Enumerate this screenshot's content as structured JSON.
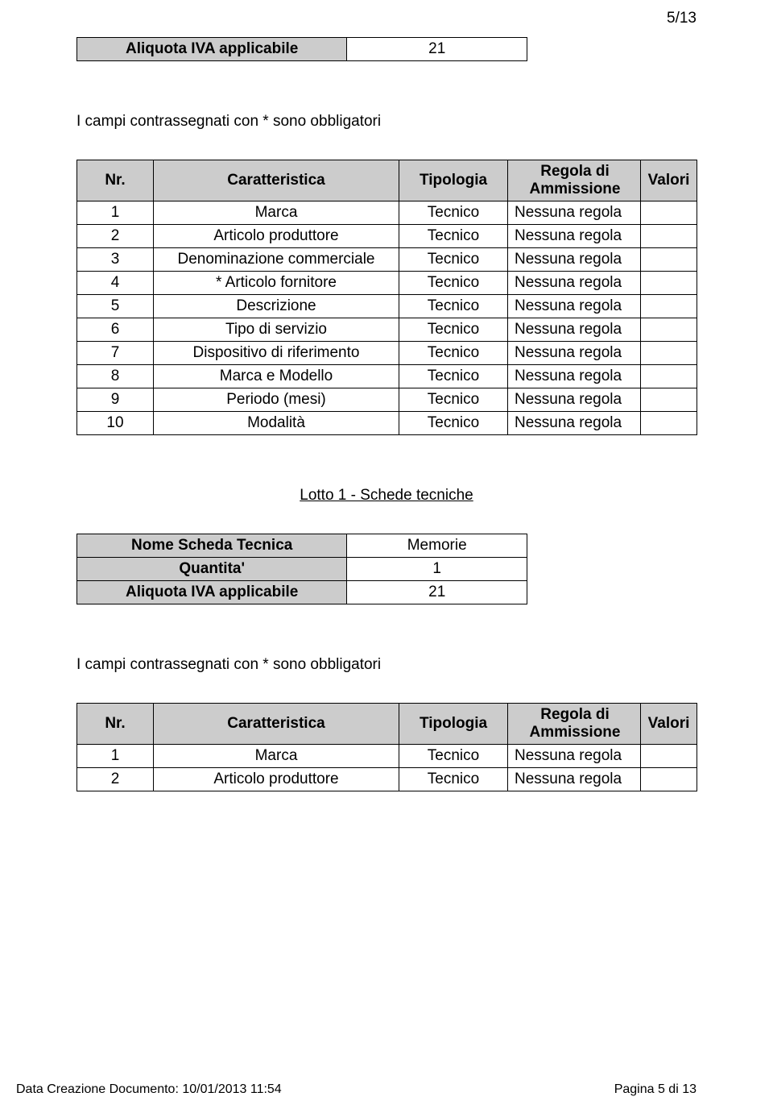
{
  "pageNumber": "5/13",
  "aliquotaTable": {
    "label": "Aliquota IVA applicabile",
    "value": "21"
  },
  "note": "I campi contrassegnati con * sono obbligatori",
  "mainTable": {
    "headers": [
      "Nr.",
      "Caratteristica",
      "Tipologia",
      "Regola di Ammissione",
      "Valori"
    ],
    "rows": [
      {
        "nr": "1",
        "car": "Marca",
        "tip": "Tecnico",
        "reg": "Nessuna regola",
        "val": ""
      },
      {
        "nr": "2",
        "car": "Articolo produttore",
        "tip": "Tecnico",
        "reg": "Nessuna regola",
        "val": ""
      },
      {
        "nr": "3",
        "car": "Denominazione commerciale",
        "tip": "Tecnico",
        "reg": "Nessuna regola",
        "val": ""
      },
      {
        "nr": "4",
        "car": "* Articolo fornitore",
        "tip": "Tecnico",
        "reg": "Nessuna regola",
        "val": ""
      },
      {
        "nr": "5",
        "car": "Descrizione",
        "tip": "Tecnico",
        "reg": "Nessuna regola",
        "val": ""
      },
      {
        "nr": "6",
        "car": "Tipo di servizio",
        "tip": "Tecnico",
        "reg": "Nessuna regola",
        "val": ""
      },
      {
        "nr": "7",
        "car": "Dispositivo di riferimento",
        "tip": "Tecnico",
        "reg": "Nessuna regola",
        "val": ""
      },
      {
        "nr": "8",
        "car": "Marca e Modello",
        "tip": "Tecnico",
        "reg": "Nessuna regola",
        "val": ""
      },
      {
        "nr": "9",
        "car": "Periodo (mesi)",
        "tip": "Tecnico",
        "reg": "Nessuna regola",
        "val": ""
      },
      {
        "nr": "10",
        "car": "Modalità",
        "tip": "Tecnico",
        "reg": "Nessuna regola",
        "val": ""
      }
    ]
  },
  "sectionTitle": "Lotto 1 - Schede tecniche",
  "schedaTable": {
    "rows": [
      {
        "label": "Nome Scheda Tecnica",
        "value": "Memorie"
      },
      {
        "label": "Quantita'",
        "value": "1"
      },
      {
        "label": "Aliquota IVA applicabile",
        "value": "21"
      }
    ]
  },
  "note2": "I campi contrassegnati con * sono obbligatori",
  "secondTable": {
    "headers": [
      "Nr.",
      "Caratteristica",
      "Tipologia",
      "Regola di Ammissione",
      "Valori"
    ],
    "rows": [
      {
        "nr": "1",
        "car": "Marca",
        "tip": "Tecnico",
        "reg": "Nessuna regola",
        "val": ""
      },
      {
        "nr": "2",
        "car": "Articolo produttore",
        "tip": "Tecnico",
        "reg": "Nessuna regola",
        "val": ""
      }
    ]
  },
  "footer": {
    "left": "Data Creazione Documento: 10/01/2013 11:54",
    "right": "Pagina 5 di 13"
  },
  "colors": {
    "headerBg": "#cccccc",
    "border": "#000000",
    "pageBg": "#ffffff",
    "text": "#000000"
  }
}
